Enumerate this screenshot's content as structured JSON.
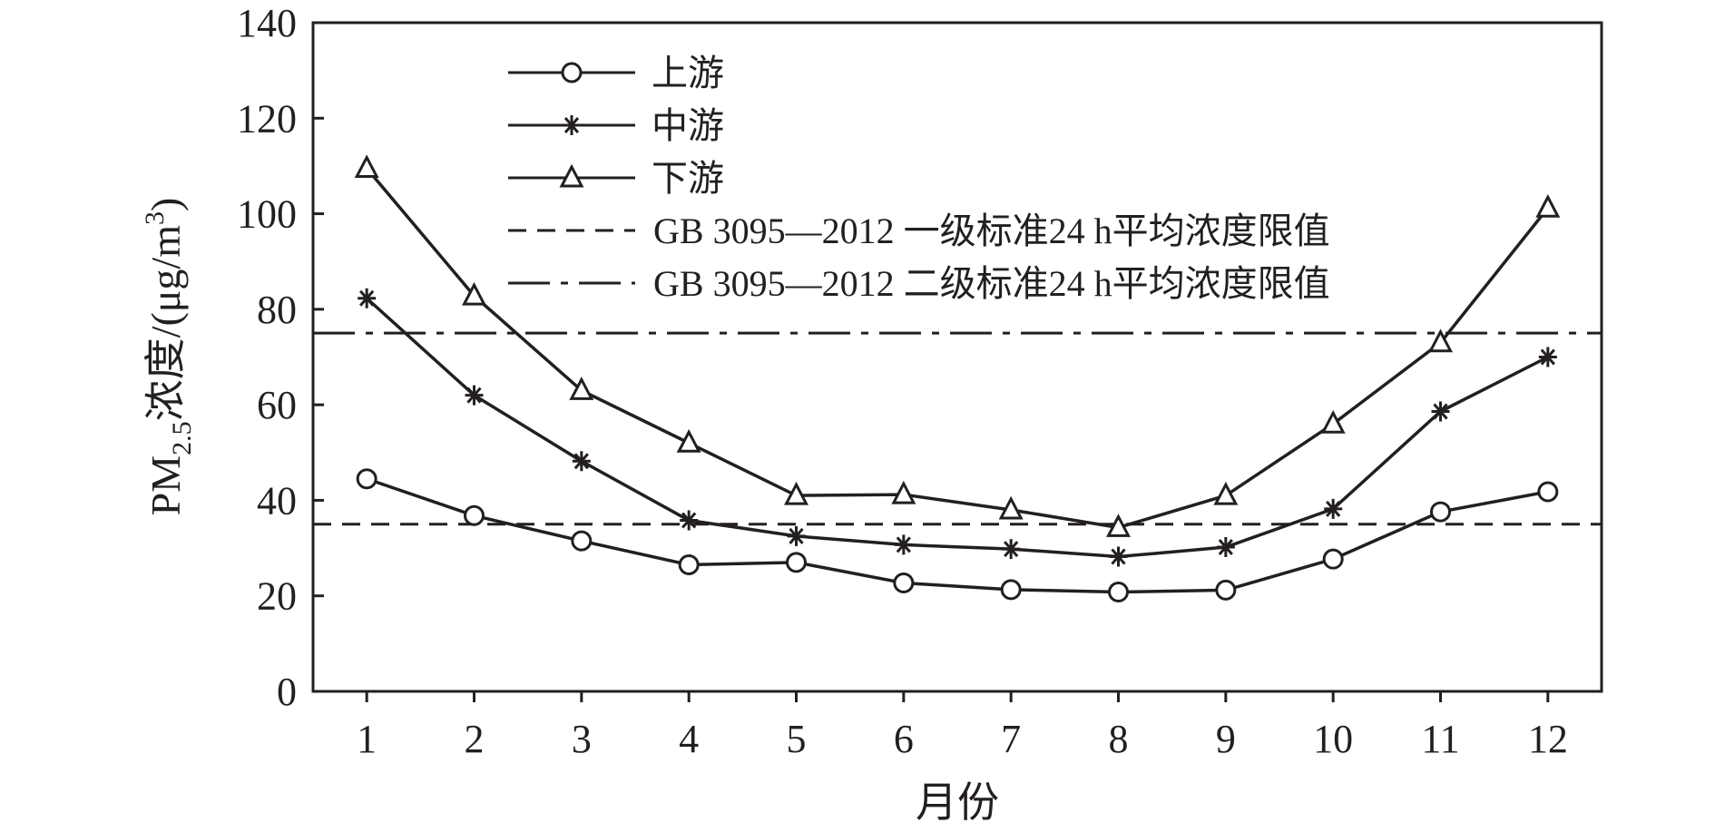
{
  "chart_data": {
    "type": "line",
    "xlabel": "月份",
    "ylabel_main": "PM",
    "ylabel_sub": "2.5",
    "ylabel_rest": "浓度/(μg/m",
    "ylabel_sup": "3",
    "ylabel_close": ")",
    "xlim": [
      0.5,
      12.5
    ],
    "ylim": [
      0,
      140
    ],
    "x_ticks": [
      1,
      2,
      3,
      4,
      5,
      6,
      7,
      8,
      9,
      10,
      11,
      12
    ],
    "y_ticks": [
      0,
      20,
      40,
      60,
      80,
      100,
      120,
      140
    ],
    "x": [
      1,
      2,
      3,
      4,
      5,
      6,
      7,
      8,
      9,
      10,
      11,
      12
    ],
    "series": [
      {
        "name": "上游",
        "marker": "circle",
        "values": [
          44.5,
          36.8,
          31.5,
          26.5,
          27.0,
          22.7,
          21.3,
          20.8,
          21.2,
          27.7,
          37.6,
          41.8
        ]
      },
      {
        "name": "中游",
        "marker": "asterisk",
        "values": [
          82.3,
          62.0,
          48.2,
          35.8,
          32.5,
          30.7,
          29.8,
          28.2,
          30.2,
          38.2,
          58.6,
          70.0
        ]
      },
      {
        "name": "下游",
        "marker": "triangle",
        "values": [
          109.5,
          82.8,
          63.0,
          52.0,
          41.0,
          41.2,
          38.0,
          34.3,
          41.0,
          56.0,
          73.0,
          101.2
        ]
      }
    ],
    "reference_lines": [
      {
        "name": "GB 3095—2012 一级标准24 h平均浓度限值",
        "value": 35,
        "style": "dashed"
      },
      {
        "name": "GB 3095—2012 二级标准24 h平均浓度限值",
        "value": 75,
        "style": "dashdot"
      }
    ],
    "legend_position": "top-left",
    "grid": false,
    "colors": {
      "line": "#231f20",
      "background": "#ffffff"
    }
  }
}
